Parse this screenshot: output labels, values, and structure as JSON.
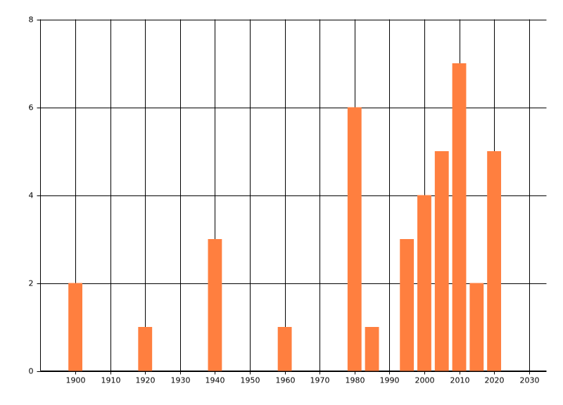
{
  "chart_data": {
    "type": "bar",
    "x": [
      1900,
      1920,
      1940,
      1960,
      1980,
      1985,
      1995,
      2000,
      2005,
      2010,
      2015,
      2020
    ],
    "values": [
      2,
      1,
      3,
      1,
      6,
      1,
      3,
      4,
      5,
      7,
      2,
      5
    ],
    "color": "#ff7f3f",
    "xlim": [
      1890,
      2035
    ],
    "xticks": [
      1900,
      1910,
      1920,
      1930,
      1940,
      1950,
      1960,
      1970,
      1980,
      1990,
      2000,
      2010,
      2020,
      2030
    ],
    "ylim": [
      0,
      8
    ],
    "yticks": [
      0,
      2,
      4,
      6,
      8
    ],
    "grid": true
  }
}
